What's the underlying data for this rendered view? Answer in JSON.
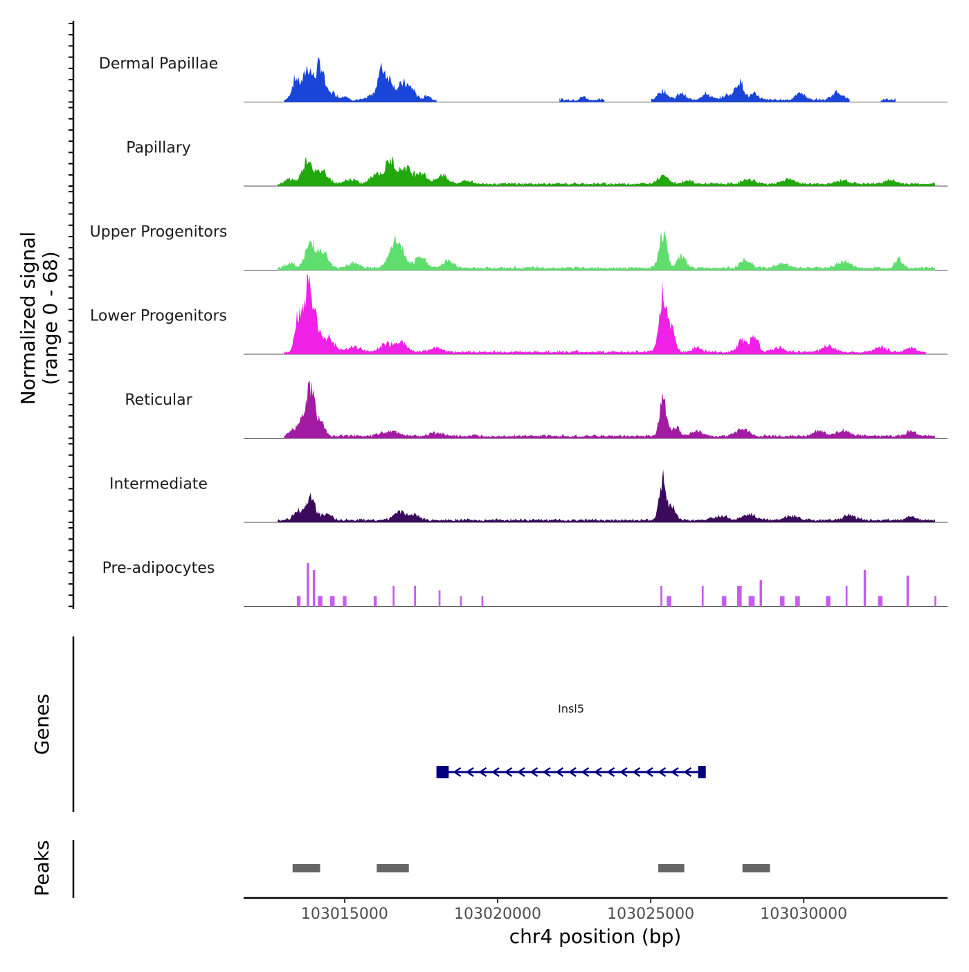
{
  "chart_data": {
    "type": "area",
    "title": "",
    "ylabel": "Normalized signal",
    "ylabel_range": "(range 0 - 68)",
    "ylim": [
      0,
      68
    ],
    "xlabel": "chr4 position (bp)",
    "xlim": [
      103011700,
      103034700
    ],
    "x_ticks": [
      103015000,
      103020000,
      103025000,
      103030000
    ],
    "x_tick_labels": [
      "103015000",
      "103020000",
      "103025000",
      "103030000"
    ],
    "tracks": [
      {
        "name": "Dermal Papillae",
        "color": "#1a45d9",
        "style": "smooth",
        "segments": [
          [
            103013000,
            103016000
          ],
          [
            103016000,
            103018000
          ],
          [
            103022000,
            103023500
          ],
          [
            103025000,
            103031500
          ],
          [
            103032500,
            103033000
          ]
        ],
        "peaks": [
          [
            103013400,
            18,
            120
          ],
          [
            103013800,
            28,
            150
          ],
          [
            103014200,
            30,
            130
          ],
          [
            103014600,
            6,
            150
          ],
          [
            103015000,
            4,
            80
          ],
          [
            103015800,
            3,
            80
          ],
          [
            103016200,
            26,
            140
          ],
          [
            103016500,
            16,
            130
          ],
          [
            103016900,
            14,
            140
          ],
          [
            103017200,
            9,
            130
          ],
          [
            103017700,
            4,
            100
          ],
          [
            103021800,
            3,
            80
          ],
          [
            103022800,
            3,
            80
          ],
          [
            103025400,
            8,
            160
          ],
          [
            103026000,
            6,
            120
          ],
          [
            103026800,
            5,
            160
          ],
          [
            103027500,
            4,
            150
          ],
          [
            103027900,
            16,
            140
          ],
          [
            103028400,
            5,
            130
          ],
          [
            103029900,
            6,
            150
          ],
          [
            103031100,
            7,
            150
          ],
          [
            103031800,
            7,
            130
          ],
          [
            103033300,
            3,
            80
          ]
        ]
      },
      {
        "name": "Papillary",
        "color": "#22a80c",
        "style": "smooth",
        "segments": [
          [
            103012800,
            103034300
          ]
        ],
        "peaks": [
          [
            103013200,
            4,
            150
          ],
          [
            103013800,
            22,
            170
          ],
          [
            103014300,
            11,
            170
          ],
          [
            103015200,
            4,
            170
          ],
          [
            103016000,
            9,
            170
          ],
          [
            103016500,
            20,
            180
          ],
          [
            103017000,
            14,
            180
          ],
          [
            103017500,
            10,
            180
          ],
          [
            103018200,
            8,
            170
          ],
          [
            103019000,
            3,
            170
          ],
          [
            103025400,
            8,
            170
          ],
          [
            103026200,
            3,
            160
          ],
          [
            103028200,
            4,
            200
          ],
          [
            103029500,
            4,
            200
          ],
          [
            103031300,
            3,
            200
          ],
          [
            103032800,
            3,
            200
          ]
        ]
      },
      {
        "name": "Upper Progenitors",
        "color": "#5fde6e",
        "style": "smooth",
        "segments": [
          [
            103012800,
            103034300
          ]
        ],
        "peaks": [
          [
            103013200,
            4,
            150
          ],
          [
            103013900,
            22,
            170
          ],
          [
            103014300,
            12,
            160
          ],
          [
            103015300,
            5,
            180
          ],
          [
            103016700,
            24,
            210
          ],
          [
            103017500,
            9,
            180
          ],
          [
            103018400,
            6,
            180
          ],
          [
            103025400,
            30,
            120
          ],
          [
            103026000,
            10,
            140
          ],
          [
            103028100,
            7,
            170
          ],
          [
            103029300,
            4,
            200
          ],
          [
            103031300,
            6,
            200
          ],
          [
            103033100,
            8,
            120
          ]
        ]
      },
      {
        "name": "Lower Progenitors",
        "color": "#f020e6",
        "style": "smooth",
        "segments": [
          [
            103013000,
            103034000
          ]
        ],
        "peaks": [
          [
            103013450,
            28,
            90
          ],
          [
            103013800,
            55,
            160
          ],
          [
            103014100,
            18,
            130
          ],
          [
            103014500,
            12,
            170
          ],
          [
            103015300,
            5,
            220
          ],
          [
            103016300,
            6,
            170
          ],
          [
            103016800,
            9,
            220
          ],
          [
            103018000,
            4,
            200
          ],
          [
            103025400,
            52,
            120
          ],
          [
            103025700,
            20,
            110
          ],
          [
            103026500,
            4,
            150
          ],
          [
            103028000,
            10,
            160
          ],
          [
            103028400,
            14,
            120
          ],
          [
            103029200,
            4,
            180
          ],
          [
            103030800,
            5,
            200
          ],
          [
            103032500,
            4,
            220
          ],
          [
            103033500,
            4,
            150
          ]
        ]
      },
      {
        "name": "Reticular",
        "color": "#a31ba3",
        "style": "smooth",
        "segments": [
          [
            103013000,
            103034300
          ]
        ],
        "peaks": [
          [
            103013300,
            5,
            120
          ],
          [
            103013650,
            20,
            130
          ],
          [
            103013900,
            40,
            110
          ],
          [
            103014200,
            14,
            140
          ],
          [
            103016500,
            4,
            300
          ],
          [
            103018000,
            3,
            200
          ],
          [
            103025400,
            38,
            100
          ],
          [
            103025800,
            8,
            140
          ],
          [
            103026500,
            4,
            200
          ],
          [
            103028000,
            6,
            200
          ],
          [
            103030500,
            4,
            200
          ],
          [
            103031300,
            5,
            200
          ],
          [
            103033500,
            4,
            150
          ]
        ]
      },
      {
        "name": "Intermediate",
        "color": "#3b0a5c",
        "style": "smooth",
        "segments": [
          [
            103012800,
            103034300
          ]
        ],
        "peaks": [
          [
            103013500,
            8,
            160
          ],
          [
            103013900,
            20,
            140
          ],
          [
            103014400,
            6,
            150
          ],
          [
            103016800,
            7,
            200
          ],
          [
            103017300,
            4,
            170
          ],
          [
            103025400,
            35,
            110
          ],
          [
            103025700,
            12,
            110
          ],
          [
            103027300,
            4,
            200
          ],
          [
            103028200,
            5,
            200
          ],
          [
            103029600,
            4,
            200
          ],
          [
            103031500,
            4,
            200
          ],
          [
            103033500,
            3,
            150
          ]
        ]
      },
      {
        "name": "Pre-adipocytes",
        "color": "#c75cf0",
        "style": "block",
        "segments": [],
        "peaks": [
          [
            103013500,
            9,
            120
          ],
          [
            103013800,
            38,
            80
          ],
          [
            103014000,
            32,
            80
          ],
          [
            103014200,
            9,
            150
          ],
          [
            103014600,
            9,
            150
          ],
          [
            103015000,
            9,
            120
          ],
          [
            103016000,
            9,
            100
          ],
          [
            103016600,
            18,
            60
          ],
          [
            103017300,
            18,
            60
          ],
          [
            103018100,
            14,
            60
          ],
          [
            103018800,
            9,
            60
          ],
          [
            103019500,
            9,
            60
          ],
          [
            103025350,
            18,
            60
          ],
          [
            103025600,
            9,
            150
          ],
          [
            103026700,
            18,
            60
          ],
          [
            103027400,
            9,
            150
          ],
          [
            103027900,
            18,
            150
          ],
          [
            103028300,
            9,
            200
          ],
          [
            103028600,
            23,
            80
          ],
          [
            103029300,
            9,
            150
          ],
          [
            103029800,
            9,
            150
          ],
          [
            103030800,
            9,
            150
          ],
          [
            103031400,
            18,
            60
          ],
          [
            103032000,
            32,
            80
          ],
          [
            103032500,
            9,
            150
          ],
          [
            103033400,
            27,
            80
          ],
          [
            103034300,
            9,
            60
          ]
        ]
      }
    ],
    "genes": [
      {
        "name": "Insl5",
        "start": 103018000,
        "end": 103026800,
        "strand": "-",
        "exons": [
          [
            103018000,
            103018400
          ],
          [
            103026550,
            103026800
          ]
        ],
        "color": "#000080"
      }
    ],
    "peaks_track": {
      "label": "Peaks",
      "color": "#666666",
      "regions": [
        [
          103013300,
          103014200
        ],
        [
          103016050,
          103017100
        ],
        [
          103025250,
          103026100
        ],
        [
          103028000,
          103028900
        ]
      ]
    },
    "genes_label": "Genes"
  }
}
